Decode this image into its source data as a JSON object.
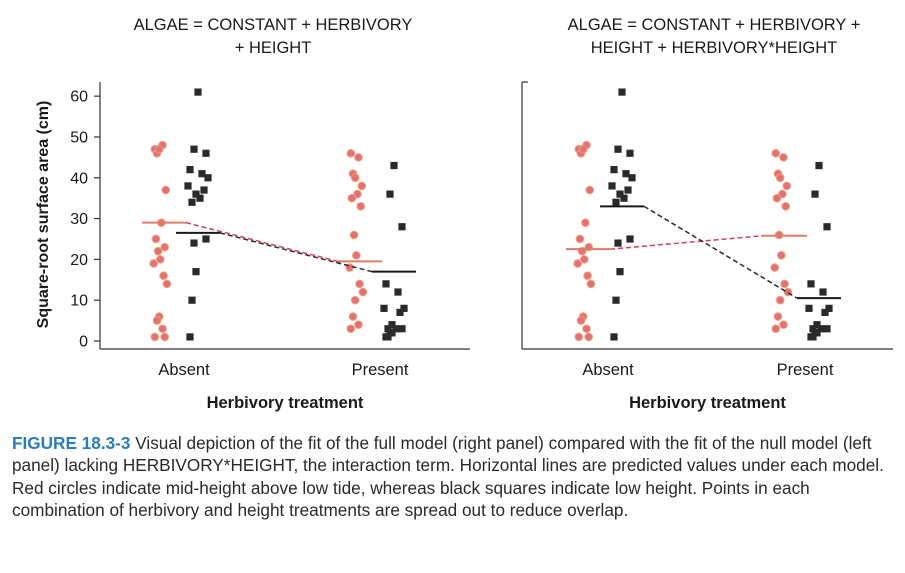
{
  "chart_data": [
    {
      "type": "scatter",
      "panel": "left",
      "title": "ALGAE = CONSTANT + HERBIVORY + HEIGHT",
      "title_lines": [
        "ALGAE = CONSTANT + HERBIVORY",
        "+ HEIGHT"
      ],
      "xlabel": "Herbivory treatment",
      "ylabel": "Square-root surface area (cm)",
      "categories": [
        "Absent",
        "Present"
      ],
      "ylim": [
        0,
        62
      ],
      "yticks": [
        0,
        10,
        20,
        30,
        40,
        50,
        60
      ],
      "series": [
        {
          "group": "mid",
          "marker": "circle",
          "color": "#e2707a",
          "points": [
            {
              "x": "Absent",
              "y": [
                47,
                48,
                46,
                47,
                37,
                29,
                25,
                23,
                22,
                20,
                19,
                16,
                14,
                6,
                5,
                3,
                1,
                1
              ]
            },
            {
              "x": "Present",
              "y": [
                46,
                45,
                41,
                40,
                38,
                36,
                35,
                33,
                26,
                21,
                18,
                14,
                12,
                10,
                6,
                4,
                3
              ]
            }
          ],
          "predicted": [
            29,
            19.5
          ]
        },
        {
          "group": "low",
          "marker": "square",
          "color": "#2a2a2a",
          "points": [
            {
              "x": "Absent",
              "y": [
                61,
                47,
                46,
                42,
                41,
                40,
                38,
                37,
                36,
                35,
                34,
                25,
                24,
                17,
                10,
                1
              ]
            },
            {
              "x": "Present",
              "y": [
                43,
                36,
                28,
                14,
                12,
                8,
                8,
                7,
                4,
                3,
                3,
                3,
                2,
                2,
                1,
                1
              ]
            }
          ],
          "predicted": [
            26.5,
            17
          ]
        }
      ]
    },
    {
      "type": "scatter",
      "panel": "right",
      "title": "ALGAE = CONSTANT + HERBIVORY + HEIGHT + HERBIVORY*HEIGHT",
      "title_lines": [
        "ALGAE = CONSTANT + HERBIVORY +",
        "HEIGHT + HERBIVORY*HEIGHT"
      ],
      "xlabel": "Herbivory treatment",
      "ylabel": "",
      "categories": [
        "Absent",
        "Present"
      ],
      "ylim": [
        0,
        62
      ],
      "yticks": [],
      "series": [
        {
          "group": "mid",
          "marker": "circle",
          "color": "#e2707a",
          "points": [
            {
              "x": "Absent",
              "y": [
                47,
                48,
                46,
                47,
                37,
                29,
                25,
                23,
                22,
                20,
                19,
                16,
                14,
                6,
                5,
                3,
                1,
                1
              ]
            },
            {
              "x": "Present",
              "y": [
                46,
                45,
                41,
                40,
                38,
                36,
                35,
                33,
                26,
                21,
                18,
                14,
                12,
                10,
                6,
                4,
                3
              ]
            }
          ],
          "predicted": [
            22.5,
            25.8
          ]
        },
        {
          "group": "low",
          "marker": "square",
          "color": "#2a2a2a",
          "points": [
            {
              "x": "Absent",
              "y": [
                61,
                47,
                46,
                42,
                41,
                40,
                38,
                37,
                36,
                35,
                34,
                25,
                24,
                17,
                10,
                1
              ]
            },
            {
              "x": "Present",
              "y": [
                43,
                36,
                28,
                14,
                12,
                8,
                8,
                7,
                4,
                3,
                3,
                3,
                2,
                2,
                1,
                1
              ]
            }
          ],
          "predicted": [
            33,
            10.5
          ]
        }
      ]
    }
  ],
  "caption": {
    "label": "FIGURE 18.3-3",
    "text": " Visual depiction of the fit of the full model (right panel) compared with the fit of the null model (left panel) lacking HERBIVORY*HEIGHT, the interaction term. Horizontal lines are predicted values under each model. Red circles indicate mid-height above low tide, whereas black squares indicate low height. Points in each combination of herbivory and height treatments are spread out to reduce overlap."
  }
}
